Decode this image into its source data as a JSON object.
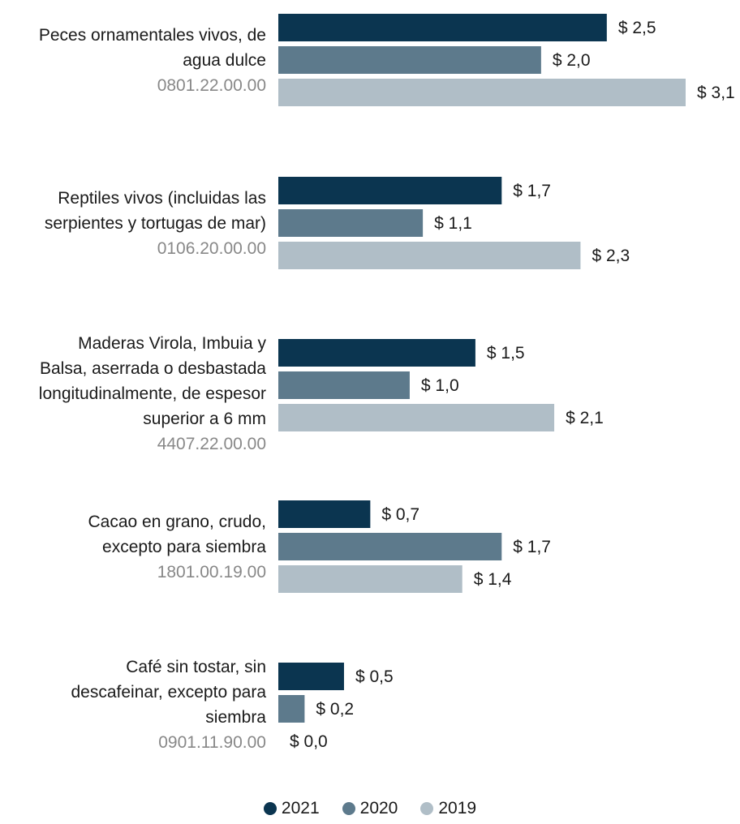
{
  "chart_data": {
    "type": "bar",
    "orientation": "horizontal",
    "title": "",
    "xlabel": "",
    "ylabel": "",
    "xlim": [
      0,
      3.1
    ],
    "grid": false,
    "legend_placement": "bottom-center",
    "value_prefix": "$ ",
    "categories": [
      {
        "name": "Peces ornamentales vivos, de agua dulce",
        "code": "0801.22.00.00"
      },
      {
        "name": "Reptiles vivos (incluidas las serpientes y tortugas de mar)",
        "code": "0106.20.00.00"
      },
      {
        "name": "Maderas Virola, Imbuia y Balsa, aserrada o desbastada longitudinalmente, de espesor superior a 6 mm",
        "code": "4407.22.00.00"
      },
      {
        "name": "Cacao en grano, crudo, excepto para siembra",
        "code": "1801.00.19.00"
      },
      {
        "name": "Café sin tostar, sin descafeinar, excepto para siembra",
        "code": "0901.11.90.00"
      }
    ],
    "category_lines": [
      [
        "Peces ornamentales vivos, de",
        "agua dulce"
      ],
      [
        "Reptiles vivos (incluidas las",
        "serpientes y tortugas de mar)"
      ],
      [
        "Maderas Virola, Imbuia y",
        "Balsa, aserrada o desbastada",
        "longitudinalmente, de espesor",
        "superior a 6 mm"
      ],
      [
        "Cacao en grano, crudo,",
        "excepto para siembra"
      ],
      [
        "Café sin tostar, sin",
        "descafeinar, excepto para",
        "siembra"
      ]
    ],
    "series": [
      {
        "name": "2021",
        "color": "#0b3550",
        "values": [
          2.5,
          1.7,
          1.5,
          0.7,
          0.5
        ],
        "labels": [
          "$ 2,5",
          "$ 1,7",
          "$ 1,5",
          "$ 0,7",
          "$ 0,5"
        ]
      },
      {
        "name": "2020",
        "color": "#5d7a8c",
        "values": [
          2.0,
          1.1,
          1.0,
          1.7,
          0.2
        ],
        "labels": [
          "$ 2,0",
          "$ 1,1",
          "$ 1,0",
          "$ 1,7",
          "$ 0,2"
        ]
      },
      {
        "name": "2019",
        "color": "#b0bec7",
        "values": [
          3.1,
          2.3,
          2.1,
          1.4,
          0.0
        ],
        "labels": [
          "$ 3,1",
          "$ 2,3",
          "$ 2,1",
          "$ 1,4",
          "$ 0,0"
        ]
      }
    ]
  }
}
